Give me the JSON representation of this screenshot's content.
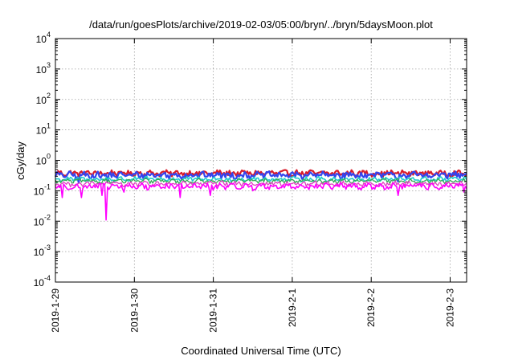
{
  "chart_data": {
    "type": "line",
    "title": "/data/run/goesPlots/archive/2019-02-03/05:00/bryn/../bryn/5daysMoon.plot",
    "xlabel": "Coordinated Universal Time (UTC)",
    "ylabel": "cGy/day",
    "y_scale": "log",
    "ylim": [
      0.0001,
      10000
    ],
    "y_ticks": [
      {
        "base": "10",
        "exp": "-4",
        "value": 0.0001
      },
      {
        "base": "10",
        "exp": "-3",
        "value": 0.001
      },
      {
        "base": "10",
        "exp": "-2",
        "value": 0.01
      },
      {
        "base": "10",
        "exp": "-1",
        "value": 0.1
      },
      {
        "base": "10",
        "exp": "0",
        "value": 1
      },
      {
        "base": "10",
        "exp": "1",
        "value": 10
      },
      {
        "base": "10",
        "exp": "2",
        "value": 100
      },
      {
        "base": "10",
        "exp": "3",
        "value": 1000
      },
      {
        "base": "10",
        "exp": "4",
        "value": 10000
      }
    ],
    "xlim": [
      "2019-01-29T00:00",
      "2019-02-03T05:00"
    ],
    "x_ticks": [
      "2019-1-29",
      "2019-1-30",
      "2019-1-31",
      "2019-2-1",
      "2019-2-2",
      "2019-2-3"
    ],
    "grid": true,
    "legend": "none",
    "series": [
      {
        "color": "#d81b2a",
        "base": 0.38,
        "amp": 0.08,
        "dips": [],
        "width": 2.2
      },
      {
        "color": "#3344ee",
        "base": 0.33,
        "amp": 0.08,
        "dips": [
          [
            "2019-01-29T07:00",
            0.18
          ],
          [
            "2019-01-29T16:00",
            0.2
          ],
          [
            "2019-02-02T08:00",
            0.2
          ]
        ],
        "width": 2.2
      },
      {
        "color": "#22cccc",
        "base": 0.24,
        "amp": 0.04,
        "dips": [],
        "width": 1.6
      },
      {
        "color": "#33aa55",
        "base": 0.21,
        "amp": 0.03,
        "dips": [],
        "width": 1.3
      },
      {
        "color": "#e040c0",
        "base": 0.17,
        "amp": 0.03,
        "dips": [],
        "width": 1.3
      },
      {
        "color": "#ff00ff",
        "base": 0.14,
        "amp": 0.03,
        "dips": [
          [
            "2019-01-29T02:00",
            0.06
          ],
          [
            "2019-01-29T08:00",
            0.06
          ],
          [
            "2019-01-29T14:00",
            0.07
          ],
          [
            "2019-01-29T21:00",
            0.09
          ],
          [
            "2019-01-29T15:30",
            0.011
          ],
          [
            "2019-01-30T14:00",
            0.06
          ],
          [
            "2019-01-30T23:00",
            0.07
          ],
          [
            "2019-01-31T12:00",
            0.1
          ],
          [
            "2019-02-02T08:00",
            0.07
          ],
          [
            "2019-02-03T04:00",
            0.09
          ]
        ],
        "width": 1.6
      }
    ]
  }
}
